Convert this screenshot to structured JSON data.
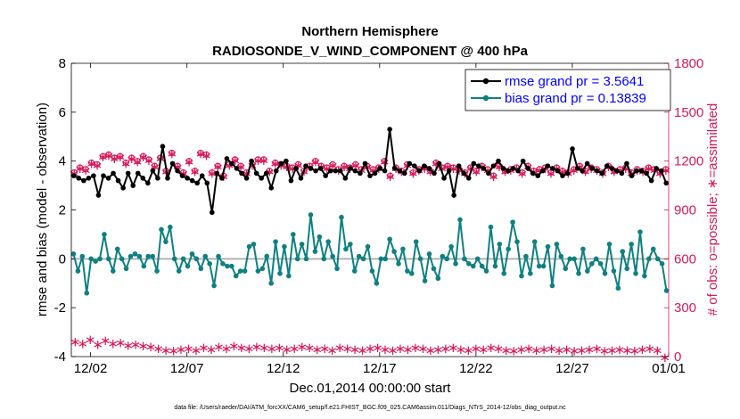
{
  "chart_data": {
    "type": "line",
    "title": "Northern Hemisphere",
    "subtitle": "RADIOSONDE_V_WIND_COMPONENT @ 400 hPa",
    "xlabel": "Dec.01,2014 00:00:00 start",
    "ylabel": "rmse and bias (model - observation)",
    "ylabel_right": "# of obs: o=possible; ∗=assimilated",
    "footnote": "data file: /Users/raeder/DAI/ATM_forcXX/CAM6_setup/f.e21.FHIST_BGC.f09_025.CAM6assim.011/Diags_NTrS_2014-12/obs_diag_output.nc",
    "xlim": [
      0,
      124
    ],
    "ylim": [
      -4,
      8
    ],
    "ylim_right": [
      0,
      1800
    ],
    "x_ticks": [
      4,
      24,
      44,
      64,
      84,
      104,
      124
    ],
    "x_tick_labels": [
      "12/02",
      "12/07",
      "12/12",
      "12/17",
      "12/22",
      "12/27",
      "01/01"
    ],
    "y_ticks": [
      -4,
      -2,
      0,
      2,
      4,
      6,
      8
    ],
    "y_ticks_right": [
      0,
      300,
      600,
      900,
      1200,
      1500,
      1800
    ],
    "legend": {
      "position": "top-right",
      "entries": [
        "rmse grand pr = 3.5641",
        "bias grand pr = 0.13839"
      ]
    },
    "colors": {
      "rmse": "#000000",
      "bias": "#0f8080",
      "obs": "#d9195a",
      "zero_line": "#b3b3b3",
      "legend_text": "#0000ff"
    },
    "series": [
      {
        "name": "rmse",
        "values": [
          3.4,
          3.3,
          3.2,
          3.3,
          3.4,
          2.6,
          3.4,
          3.3,
          3.5,
          3.2,
          2.9,
          3.5,
          3.0,
          3.5,
          3.3,
          3.1,
          3.6,
          3.3,
          4.6,
          3.3,
          3.9,
          3.6,
          3.4,
          3.3,
          3.2,
          3.1,
          3.4,
          3.1,
          1.9,
          3.5,
          3.3,
          4.1,
          3.9,
          3.7,
          3.5,
          3.3,
          4.0,
          3.5,
          3.3,
          3.5,
          2.9,
          3.6,
          3.9,
          4.0,
          3.2,
          3.7,
          3.3,
          3.8,
          3.7,
          3.6,
          3.7,
          3.4,
          3.6,
          3.6,
          3.6,
          3.3,
          3.7,
          3.6,
          3.5,
          3.9,
          3.4,
          3.5,
          3.7,
          3.6,
          5.3,
          3.7,
          3.6,
          3.5,
          3.9,
          3.8,
          3.6,
          3.8,
          3.7,
          3.5,
          3.9,
          3.3,
          3.6,
          2.6,
          3.8,
          3.5,
          3.3,
          3.9,
          3.8,
          3.7,
          3.5,
          3.8,
          4.0,
          3.7,
          3.6,
          3.7,
          3.6,
          4.0,
          3.7,
          3.5,
          3.4,
          3.6,
          3.8,
          3.7,
          3.6,
          3.4,
          3.5,
          4.5,
          3.7,
          3.6,
          3.9,
          3.7,
          3.6,
          3.5,
          3.8,
          3.7,
          3.6,
          3.5,
          3.9,
          3.4,
          3.6,
          3.6,
          3.5,
          3.2,
          3.7,
          3.6,
          3.1
        ],
        "dates": [
          0.0
        ]
      },
      {
        "name": "bias",
        "values": [
          0.2,
          -0.5,
          0.1,
          -1.4,
          0.0,
          -0.1,
          0.0,
          1.0,
          0.0,
          -0.5,
          0.4,
          0.0,
          -0.4,
          0.1,
          0.2,
          0.1,
          -0.3,
          0.1,
          0.1,
          -0.5,
          1.2,
          0.7,
          1.3,
          0.0,
          -0.5,
          0.0,
          -0.3,
          0.2,
          0.0,
          -0.4,
          0.1,
          -0.2,
          -1.1,
          0.1,
          -0.2,
          -0.3,
          -0.3,
          -0.7,
          -0.5,
          -0.5,
          0.5,
          0.6,
          -0.5,
          -0.4,
          0.1,
          -1.0,
          0.7,
          -0.6,
          0.5,
          -0.7,
          1.0,
          0.0,
          0.6,
          0.0,
          1.8,
          0.3,
          0.9,
          0.0,
          0.7,
          0.1,
          -0.4,
          1.7,
          0.4,
          0.6,
          -0.5,
          0.1,
          0.0,
          0.5,
          -0.5,
          -1.0,
          0.0,
          0.0,
          0.8,
          0.3,
          -0.2,
          0.4,
          -0.5,
          -0.6,
          0.7,
          0.0,
          -0.9,
          0.2,
          -0.4,
          -0.8,
          0.1,
          0.0,
          0.5,
          -0.2,
          1.6,
          0.0,
          -0.2,
          -0.3,
          0.0,
          -0.3,
          -0.5,
          1.3,
          -0.3,
          0.6,
          -0.6,
          0.4,
          1.5,
          0.7,
          -0.7,
          0.1,
          -0.6,
          0.7,
          -0.3,
          -0.3,
          0.5,
          -1.1,
          0.6,
          0.1,
          -0.4,
          0.0,
          0.0,
          -0.6,
          0.4,
          -0.5,
          -0.2,
          0.0,
          -0.2,
          -0.6,
          0.6,
          -0.5,
          -1.2,
          0.3,
          -0.4,
          0.6,
          -0.6,
          1.1,
          -0.7,
          0.0,
          0.4,
          0.0,
          -0.2,
          -1.3
        ],
        "dates": [
          0.0
        ]
      },
      {
        "name": "obs_possible",
        "axis": "right",
        "values": [
          1130,
          1160,
          1150,
          1190,
          1180,
          1230,
          1240,
          1220,
          1230,
          1190,
          1220,
          1200,
          1230,
          1210,
          1170,
          1220,
          1140,
          1250,
          1170,
          1130,
          1200,
          1140,
          1250,
          1240,
          1130,
          1170,
          1110,
          1180,
          1210,
          1170,
          1130,
          1180,
          1210,
          1210,
          1140,
          1190,
          1180,
          1170,
          1160,
          1180,
          1140,
          1170,
          1200,
          1170,
          1160,
          1180,
          1150,
          1170,
          1160,
          1180,
          1150,
          1170,
          1150,
          1160,
          1200,
          1110,
          1160,
          1140,
          1180,
          1130,
          1150,
          1160,
          1140,
          1190,
          1160,
          1170,
          1160,
          1150,
          1130,
          1160,
          1140,
          1170,
          1150,
          1110,
          1170,
          1140,
          1150,
          1160,
          1130,
          1170,
          1140,
          1150,
          1160,
          1130,
          1160,
          1140,
          1130,
          1150,
          1170,
          1140,
          1160,
          1150,
          1130,
          1170,
          1140,
          1150,
          1160,
          1130,
          1150,
          1140,
          1160,
          1150,
          1130,
          1150
        ],
        "dates": [
          0.0
        ]
      },
      {
        "name": "obs_assimilated",
        "axis": "right",
        "values": [
          95,
          85,
          110,
          80,
          105,
          85,
          90,
          75,
          80,
          70,
          65,
          55,
          45,
          40,
          50,
          55,
          45,
          60,
          50,
          65,
          55,
          70,
          60,
          55,
          65,
          60,
          55,
          60,
          50,
          55,
          65,
          60,
          50,
          55,
          45,
          60,
          55,
          50,
          45,
          55,
          60,
          50,
          45,
          55,
          50,
          60,
          55,
          45,
          50,
          55,
          60,
          50,
          45,
          55,
          50,
          60,
          55,
          45,
          40,
          50,
          55,
          45,
          50,
          55,
          45,
          50,
          40,
          45,
          50,
          55,
          40,
          45,
          50,
          45,
          40,
          50,
          55,
          45,
          0
        ],
        "dates": [
          0.0
        ]
      }
    ]
  }
}
